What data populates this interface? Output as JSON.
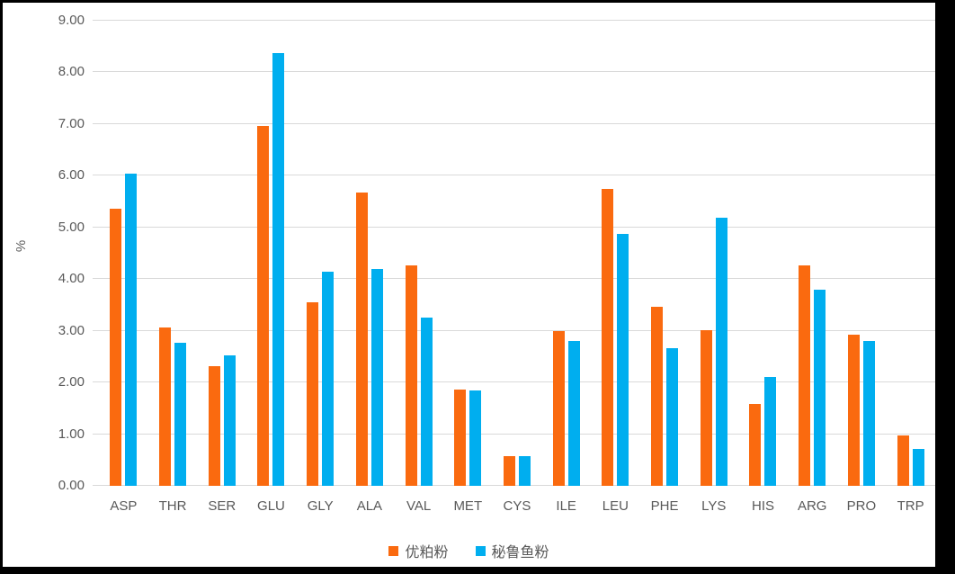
{
  "chart_data": {
    "type": "bar",
    "title": "",
    "xlabel": "",
    "ylabel": "%",
    "ylim": [
      0,
      9
    ],
    "ytick_step": 1,
    "yticks": [
      "0.00",
      "1.00",
      "2.00",
      "3.00",
      "4.00",
      "5.00",
      "6.00",
      "7.00",
      "8.00",
      "9.00"
    ],
    "grid": true,
    "legend_position": "bottom",
    "categories": [
      "ASP",
      "THR",
      "SER",
      "GLU",
      "GLY",
      "ALA",
      "VAL",
      "MET",
      "CYS",
      "ILE",
      "LEU",
      "PHE",
      "LYS",
      "HIS",
      "ARG",
      "PRO",
      "TRP"
    ],
    "series": [
      {
        "name": "优粕粉",
        "color": "#FA6A0F",
        "values": [
          5.37,
          3.06,
          2.31,
          6.97,
          3.55,
          5.68,
          4.26,
          1.87,
          0.58,
          2.99,
          5.75,
          3.47,
          3.02,
          1.59,
          4.26,
          2.92,
          0.97
        ]
      },
      {
        "name": "秘鲁鱼粉",
        "color": "#00AEEF",
        "values": [
          6.04,
          2.76,
          2.52,
          8.38,
          4.14,
          4.19,
          3.26,
          1.85,
          0.57,
          2.8,
          4.87,
          2.66,
          5.18,
          2.1,
          3.79,
          2.8,
          0.72
        ]
      }
    ]
  },
  "colors": {
    "frame": "#000000",
    "canvas_bg": "#ffffff",
    "gridline": "#d9d9d9",
    "axis_text": "#595959"
  }
}
